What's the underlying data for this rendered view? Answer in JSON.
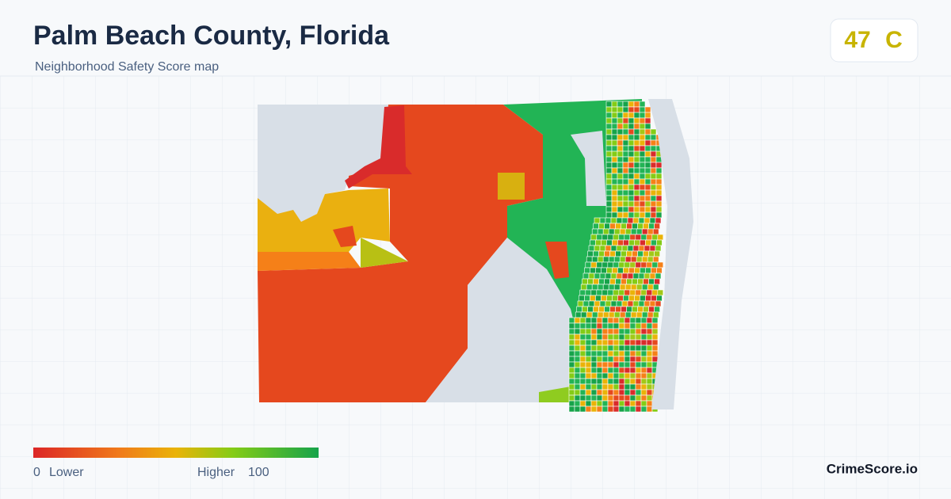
{
  "header": {
    "title": "Palm Beach County, Florida",
    "subtitle": "Neighborhood Safety Score map"
  },
  "score": {
    "value": 47,
    "grade": "C"
  },
  "legend": {
    "min": 0,
    "min_label": "Lower",
    "max_label": "Higher",
    "max": 100
  },
  "brand": "CrimeScore.io"
}
